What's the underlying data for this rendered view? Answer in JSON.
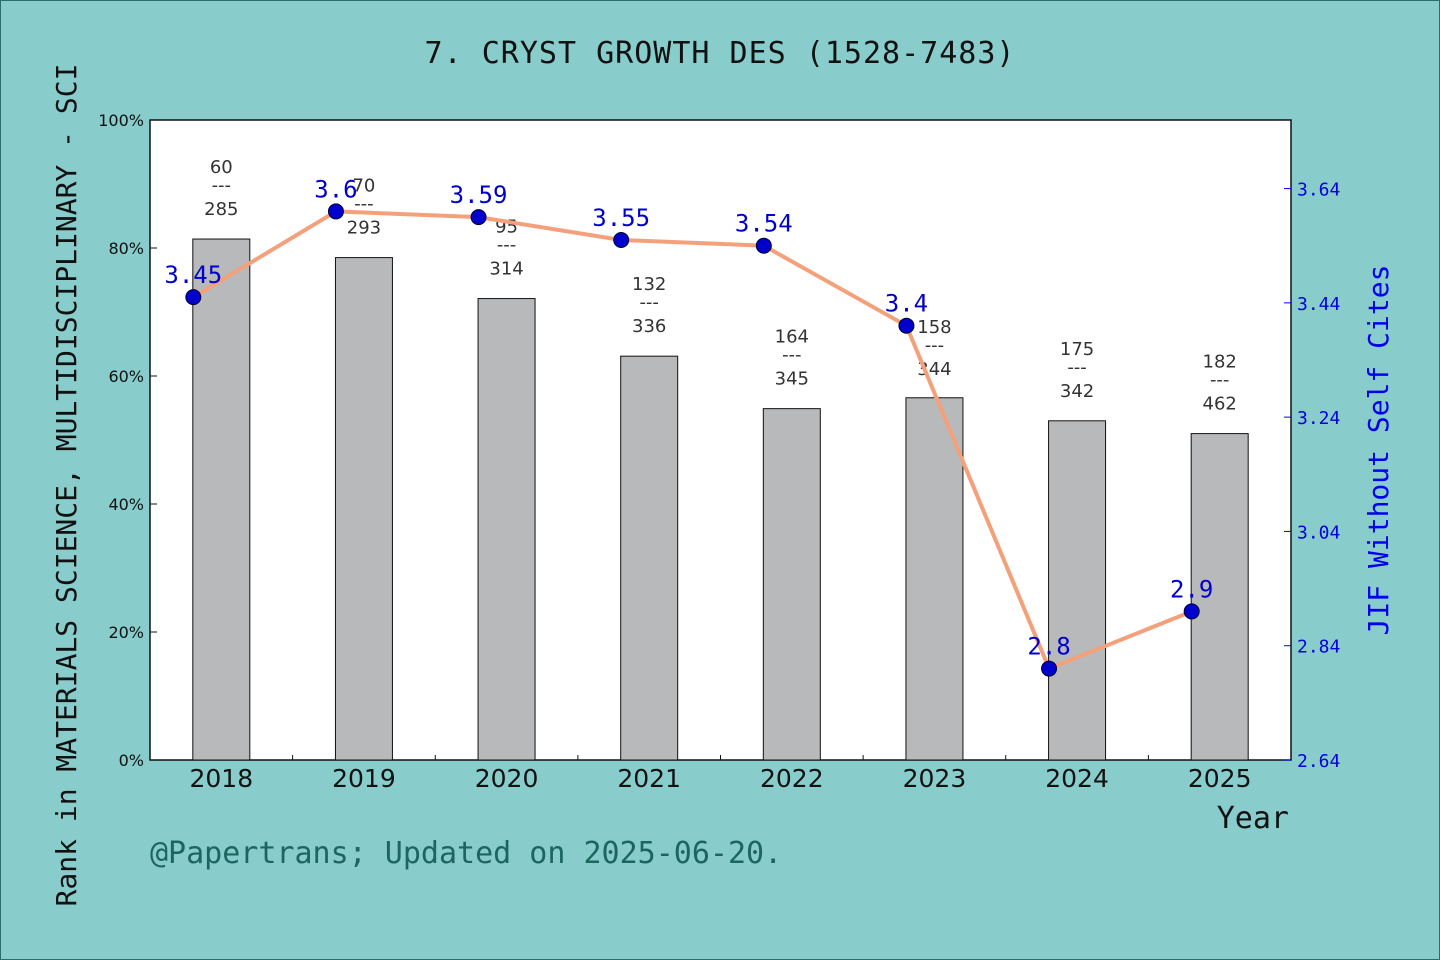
{
  "chart_data": {
    "type": "bar",
    "title": "7. CRYST GROWTH DES (1528-7483)",
    "xlabel": "Year",
    "ylabel": "Rank in MATERIALS SCIENCE, MULTIDISCIPLINARY - SCI",
    "y2label": "JIF Without Self Cites",
    "categories": [
      "2018",
      "2019",
      "2020",
      "2021",
      "2022",
      "2023",
      "2024",
      "2025"
    ],
    "ylim": [
      0,
      100
    ],
    "y_ticks": [
      "0%",
      "20%",
      "40%",
      "60%",
      "80%",
      "100%"
    ],
    "y2lim": [
      2.64,
      3.76
    ],
    "y2_ticks": [
      "2.64",
      "2.84",
      "3.04",
      "3.24",
      "3.44",
      "3.64"
    ],
    "series": [
      {
        "type": "bar",
        "axis": "left",
        "values": [
          81.4,
          78.5,
          72.1,
          63.1,
          54.9,
          56.6,
          53.0,
          51.0
        ],
        "ranks": [
          "60",
          "70",
          "95",
          "132",
          "164",
          "158",
          "175",
          "182"
        ],
        "totals": [
          "285",
          "293",
          "314",
          "336",
          "345",
          "344",
          "342",
          "462"
        ],
        "separator": "---",
        "color": "#b8b9ba"
      },
      {
        "type": "line",
        "axis": "right",
        "values": [
          3.45,
          3.6,
          3.59,
          3.55,
          3.54,
          3.4,
          2.8,
          2.9
        ],
        "labels": [
          "3.45",
          "3.6",
          "3.59",
          "3.55",
          "3.54",
          "3.4",
          "2.8",
          "2.9"
        ],
        "line_color": "#f4a07a",
        "marker_color": "#0000cc"
      }
    ],
    "grid": false
  },
  "footer": "@Papertrans; Updated on 2025-06-20.",
  "colors": {
    "background": "#88cccb",
    "plot_background": "#ffffff",
    "bar": "#b8b9ba",
    "line": "#f4a07a",
    "marker": "#0000cc",
    "right_axis": "#0000ee"
  }
}
